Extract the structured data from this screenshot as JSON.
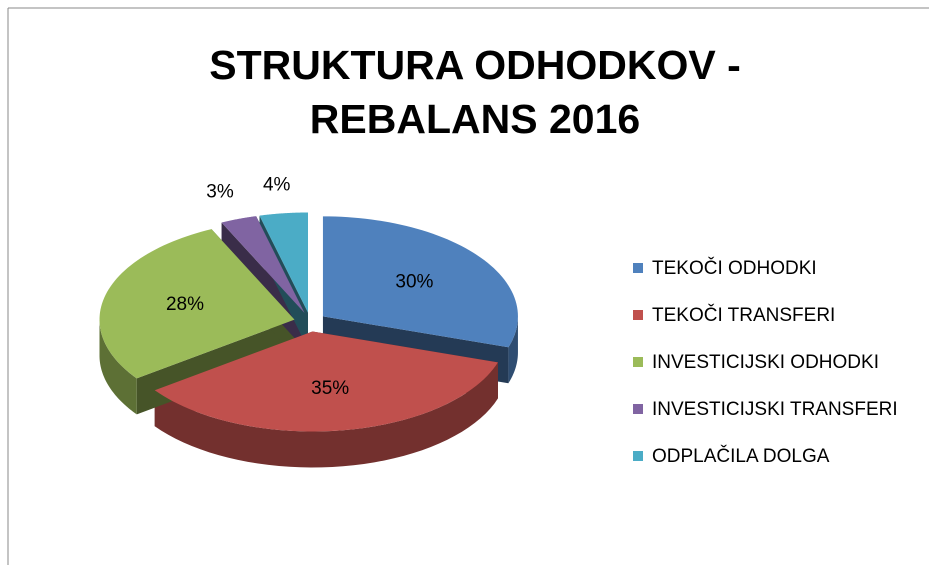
{
  "chart_data": {
    "type": "pie3d",
    "title": "STRUKTURA ODHODKOV - REBALANS 2016",
    "categories": [
      "TEKOČI ODHODKI",
      "TEKOČI TRANSFERI",
      "INVESTICIJSKI ODHODKI",
      "INVESTICIJSKI TRANSFERI",
      "ODPLAČILA DOLGA"
    ],
    "values": [
      30,
      35,
      28,
      3,
      4
    ],
    "value_labels": [
      "30%",
      "35%",
      "28%",
      "3%",
      "4%"
    ],
    "colors": [
      "#4f81bd",
      "#c0504d",
      "#9bbb59",
      "#8064a2",
      "#4bacc6"
    ],
    "legend": "right"
  }
}
